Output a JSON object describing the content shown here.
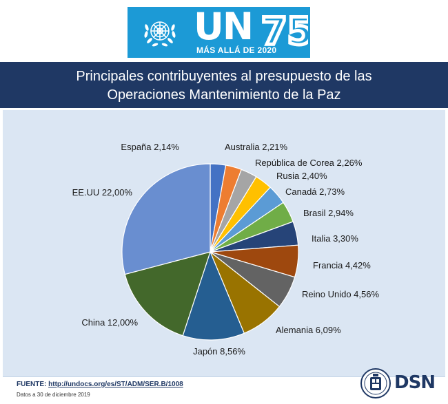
{
  "banner": {
    "letters": "UN",
    "number": "75",
    "subtitle": "MÁS ALLÁ DE 2020",
    "bg_color": "#1c9ad6",
    "emblem_icon": "un-emblem-icon"
  },
  "chart_data": {
    "type": "pie",
    "title_line1": "Principales contribuyentes al presupuesto de las",
    "title_line2": "Operaciones Mantenimiento de la Paz",
    "start_angle_deg": 0,
    "direction": "clockwise",
    "slices": [
      {
        "label": "España 2,14%",
        "value": 2.14,
        "color": "#4472c4"
      },
      {
        "label": "Australia 2,21%",
        "value": 2.21,
        "color": "#ed7d31"
      },
      {
        "label": "República de Corea 2,26%",
        "value": 2.26,
        "color": "#a5a5a5"
      },
      {
        "label": "Rusia 2,40%",
        "value": 2.4,
        "color": "#ffc000"
      },
      {
        "label": "Canadá 2,73%",
        "value": 2.73,
        "color": "#5b9bd5"
      },
      {
        "label": "Brasil 2,94%",
        "value": 2.94,
        "color": "#70ad47"
      },
      {
        "label": "Italia 3,30%",
        "value": 3.3,
        "color": "#264478"
      },
      {
        "label": "Francia 4,42%",
        "value": 4.42,
        "color": "#9e480e"
      },
      {
        "label": "Reino Unido 4,56%",
        "value": 4.56,
        "color": "#636363"
      },
      {
        "label": "Alemania 6,09%",
        "value": 6.09,
        "color": "#997300"
      },
      {
        "label": "Japón 8,56%",
        "value": 8.56,
        "color": "#255e91"
      },
      {
        "label": "China 12,00%",
        "value": 12.0,
        "color": "#43682b"
      },
      {
        "label": "EE.UU 22,00%",
        "value": 22.0,
        "color": "#698ed0"
      }
    ]
  },
  "footer": {
    "source_label": "FUENTE:",
    "source_link": "http://undocs.org/es/ST/ADM/SER.B/1008",
    "date_note": "Datos a 30 de diciembre 2019",
    "logo_text": "DSN",
    "crest_icon": "crest-icon"
  }
}
